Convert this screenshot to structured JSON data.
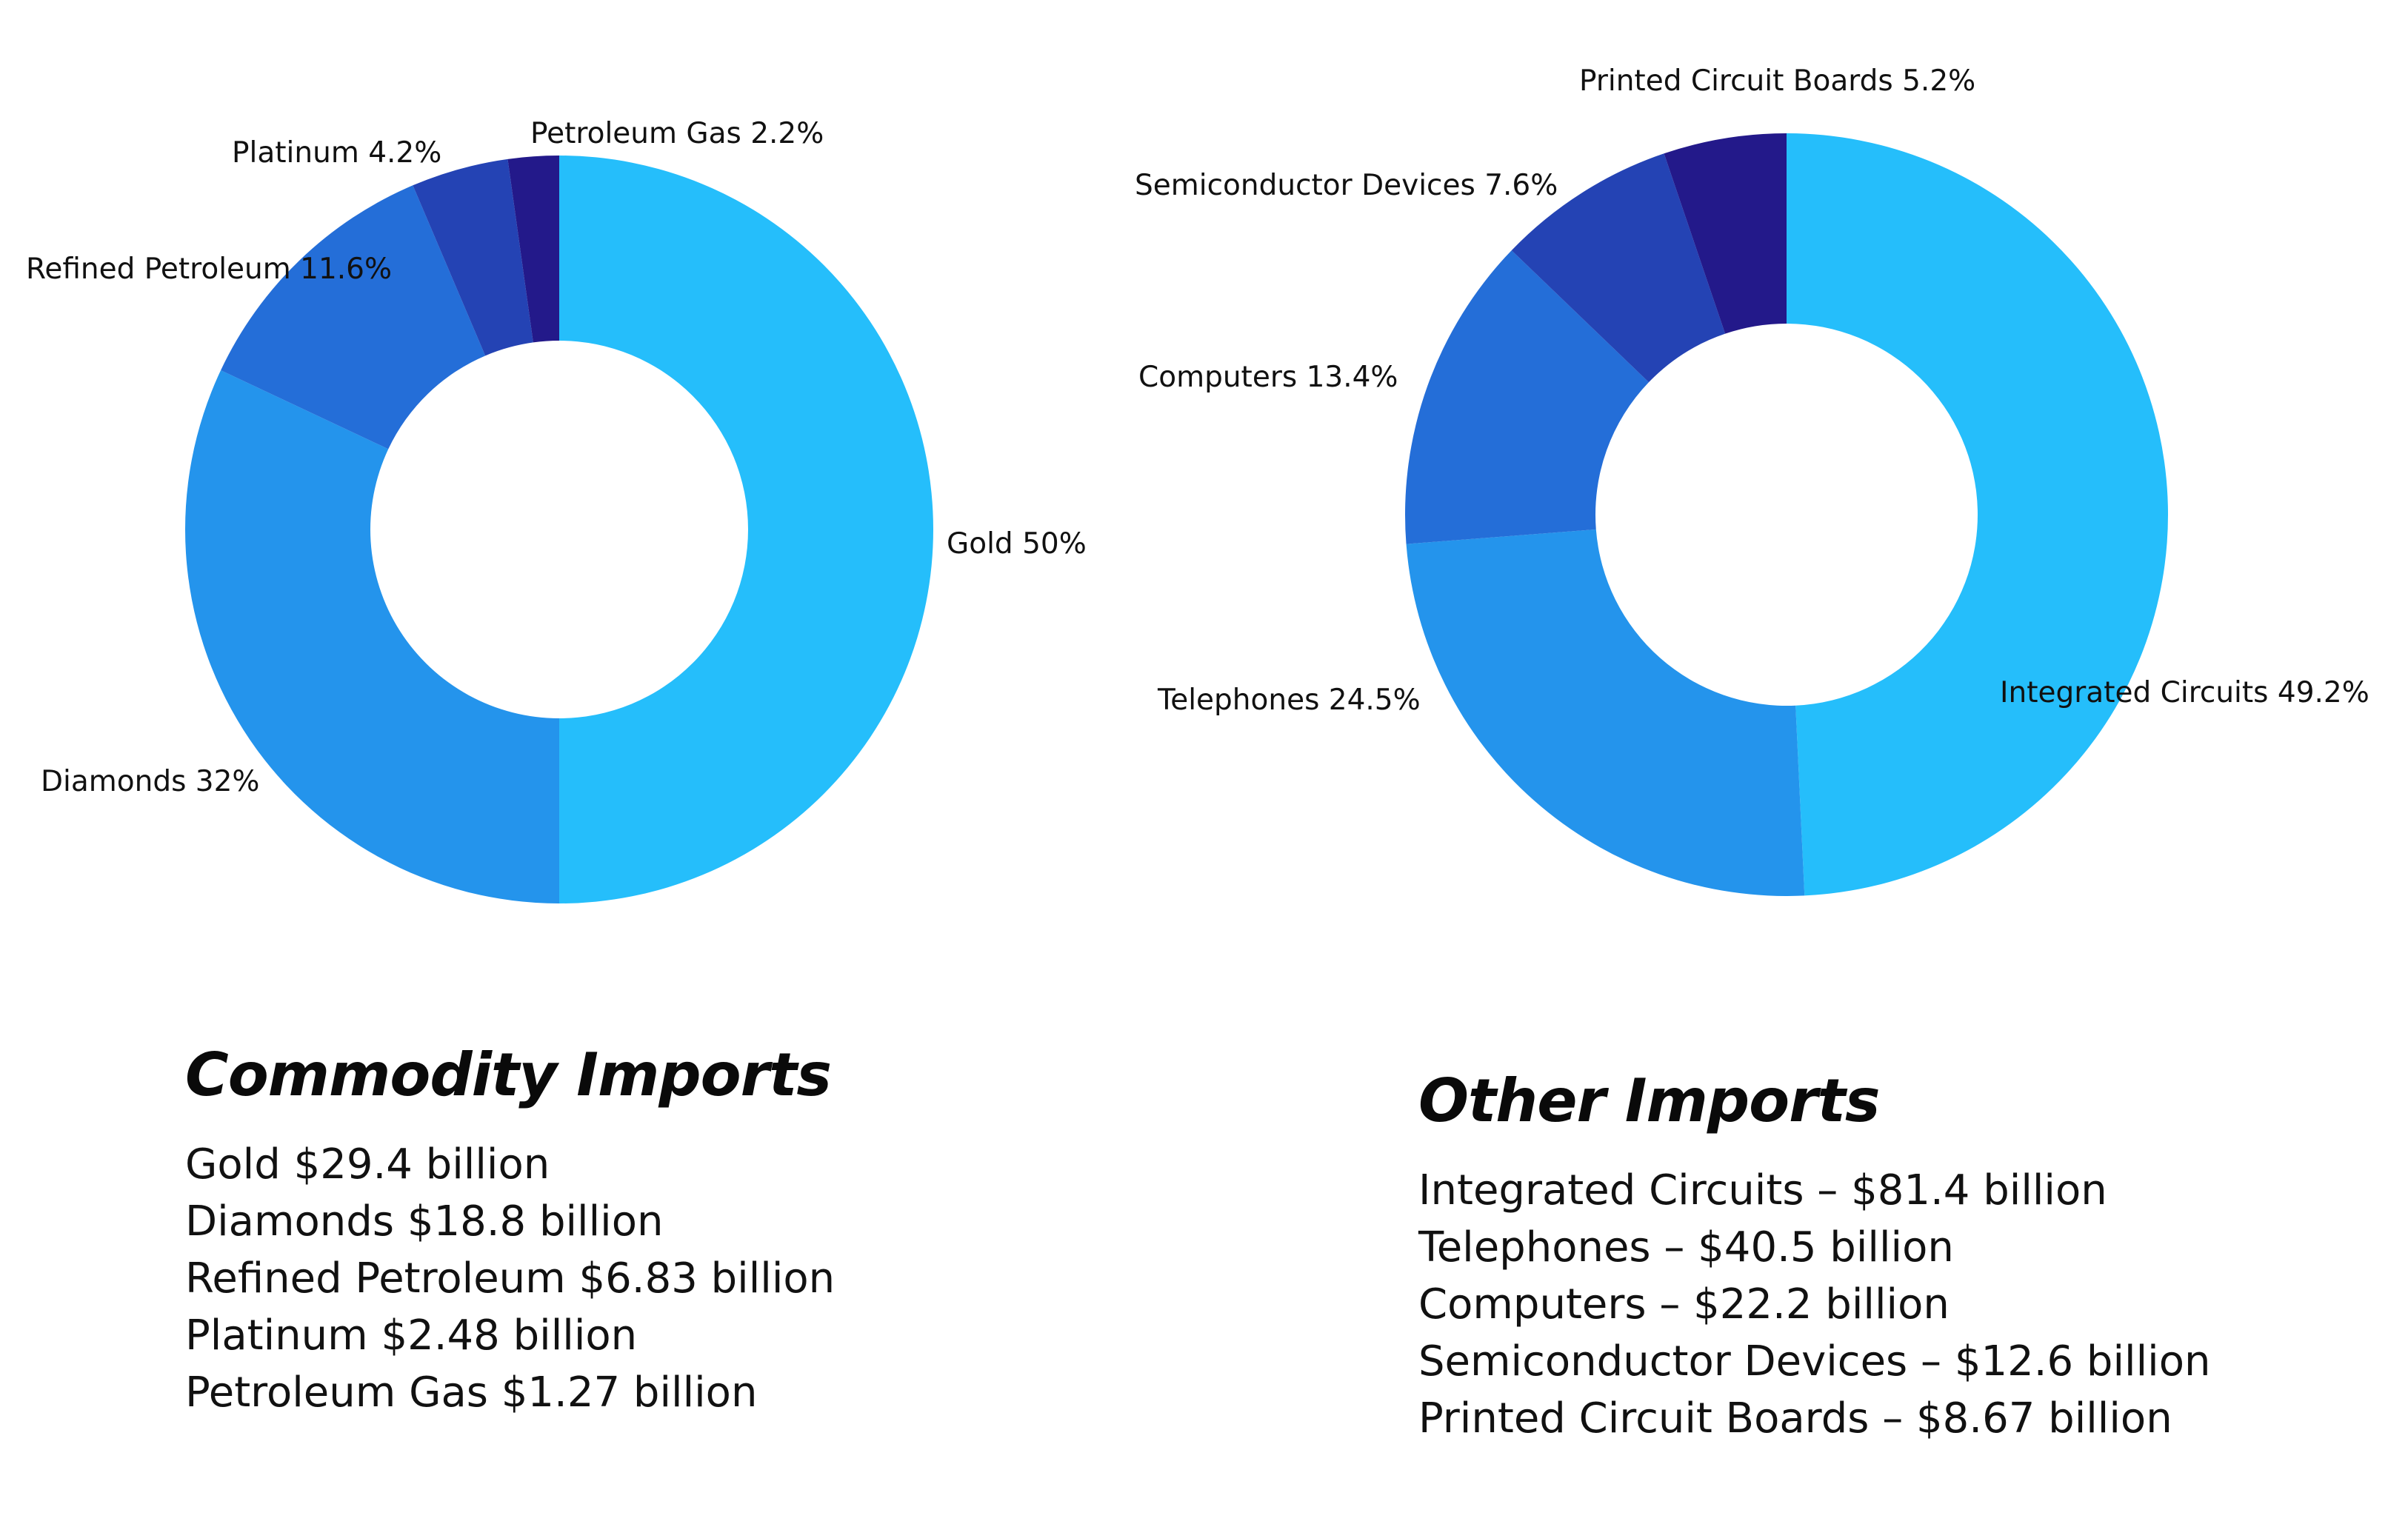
{
  "chart_data": [
    {
      "type": "pie",
      "title": "Commodity Imports",
      "series": [
        {
          "label": "Gold 50%",
          "value": 50,
          "color": "#25BEFB"
        },
        {
          "label": "Diamonds 32%",
          "value": 32,
          "color": "#2494EC"
        },
        {
          "label": "Refined Petroleum 11.6%",
          "value": 11.6,
          "color": "#246ED8"
        },
        {
          "label": "Platinum 4.2%",
          "value": 4.2,
          "color": "#2443B4"
        },
        {
          "label": "Petroleum Gas 2.2%",
          "value": 2.2,
          "color": "#23198A"
        }
      ],
      "summary": [
        "Gold $29.4 billion",
        "Diamonds $18.8 billion",
        "Refined Petroleum $6.83 billion",
        "Platinum $2.48 billion",
        "Petroleum Gas $1.27 billion"
      ]
    },
    {
      "type": "pie",
      "title": "Other Imports",
      "series": [
        {
          "label": "Integrated Circuits 49.2%",
          "value": 49.2,
          "color": "#25BEFB"
        },
        {
          "label": "Telephones 24.5%",
          "value": 24.5,
          "color": "#2494EC"
        },
        {
          "label": "Computers 13.4%",
          "value": 13.4,
          "color": "#246ED8"
        },
        {
          "label": "Semiconductor Devices 7.6%",
          "value": 7.6,
          "color": "#2443B4"
        },
        {
          "label": "Printed Circuit Boards 5.2%",
          "value": 5.2,
          "color": "#23198A"
        }
      ],
      "summary": [
        "Integrated Circuits – $81.4 billion",
        "Telephones – $40.5 billion",
        "Computers – $22.2 billion",
        "Semiconductor Devices – $12.6 billion",
        "Printed Circuit Boards – $8.67 billion"
      ]
    }
  ]
}
